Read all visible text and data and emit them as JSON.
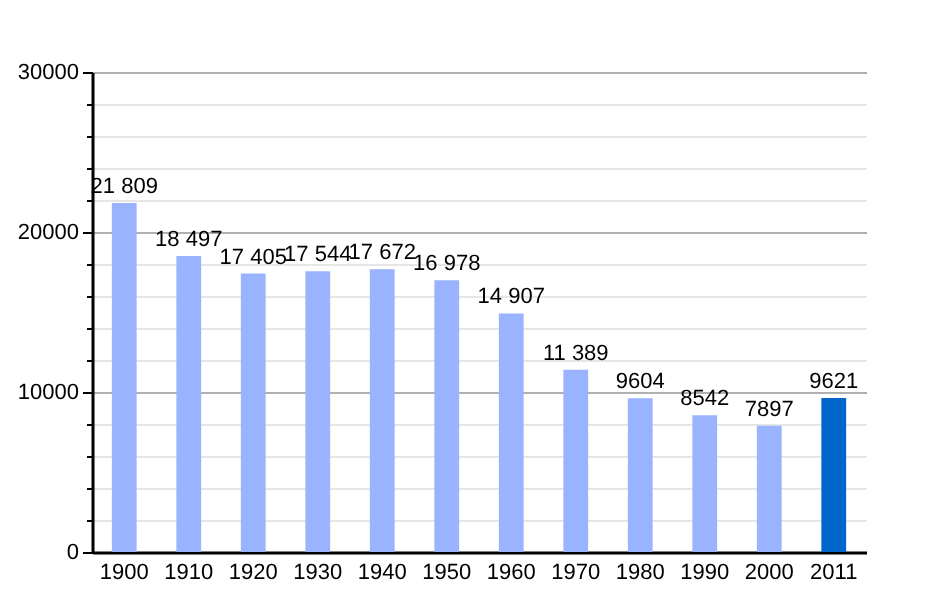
{
  "chart_data": {
    "type": "bar",
    "categories": [
      "1900",
      "1910",
      "1920",
      "1930",
      "1940",
      "1950",
      "1960",
      "1970",
      "1980",
      "1990",
      "2000",
      "2011"
    ],
    "values": [
      21809,
      18497,
      17405,
      17544,
      17672,
      16978,
      14907,
      11389,
      9604,
      8542,
      7897,
      9621
    ],
    "value_labels": [
      "21 809",
      "18 497",
      "17 405",
      "17 544",
      "17 672",
      "16 978",
      "14 907",
      "11 389",
      "9604",
      "8542",
      "7897",
      "9621"
    ],
    "colors": [
      "#99b3ff",
      "#99b3ff",
      "#99b3ff",
      "#99b3ff",
      "#99b3ff",
      "#99b3ff",
      "#99b3ff",
      "#99b3ff",
      "#99b3ff",
      "#99b3ff",
      "#99b3ff",
      "#0066cc"
    ],
    "ylim": [
      0,
      30000
    ],
    "yticks": [
      0,
      {
        "value": 2000,
        "label": null
      },
      {
        "value": 4000,
        "label": null
      },
      {
        "value": 6000,
        "label": null
      },
      {
        "value": 8000,
        "label": null
      },
      10000,
      {
        "value": 12000,
        "label": null
      },
      {
        "value": 14000,
        "label": null
      },
      {
        "value": 16000,
        "label": null
      },
      {
        "value": 18000,
        "label": null
      },
      20000,
      {
        "value": 22000,
        "label": null
      },
      {
        "value": 24000,
        "label": null
      },
      {
        "value": 26000,
        "label": null
      },
      {
        "value": 28000,
        "label": null
      },
      30000
    ],
    "grid": true
  }
}
